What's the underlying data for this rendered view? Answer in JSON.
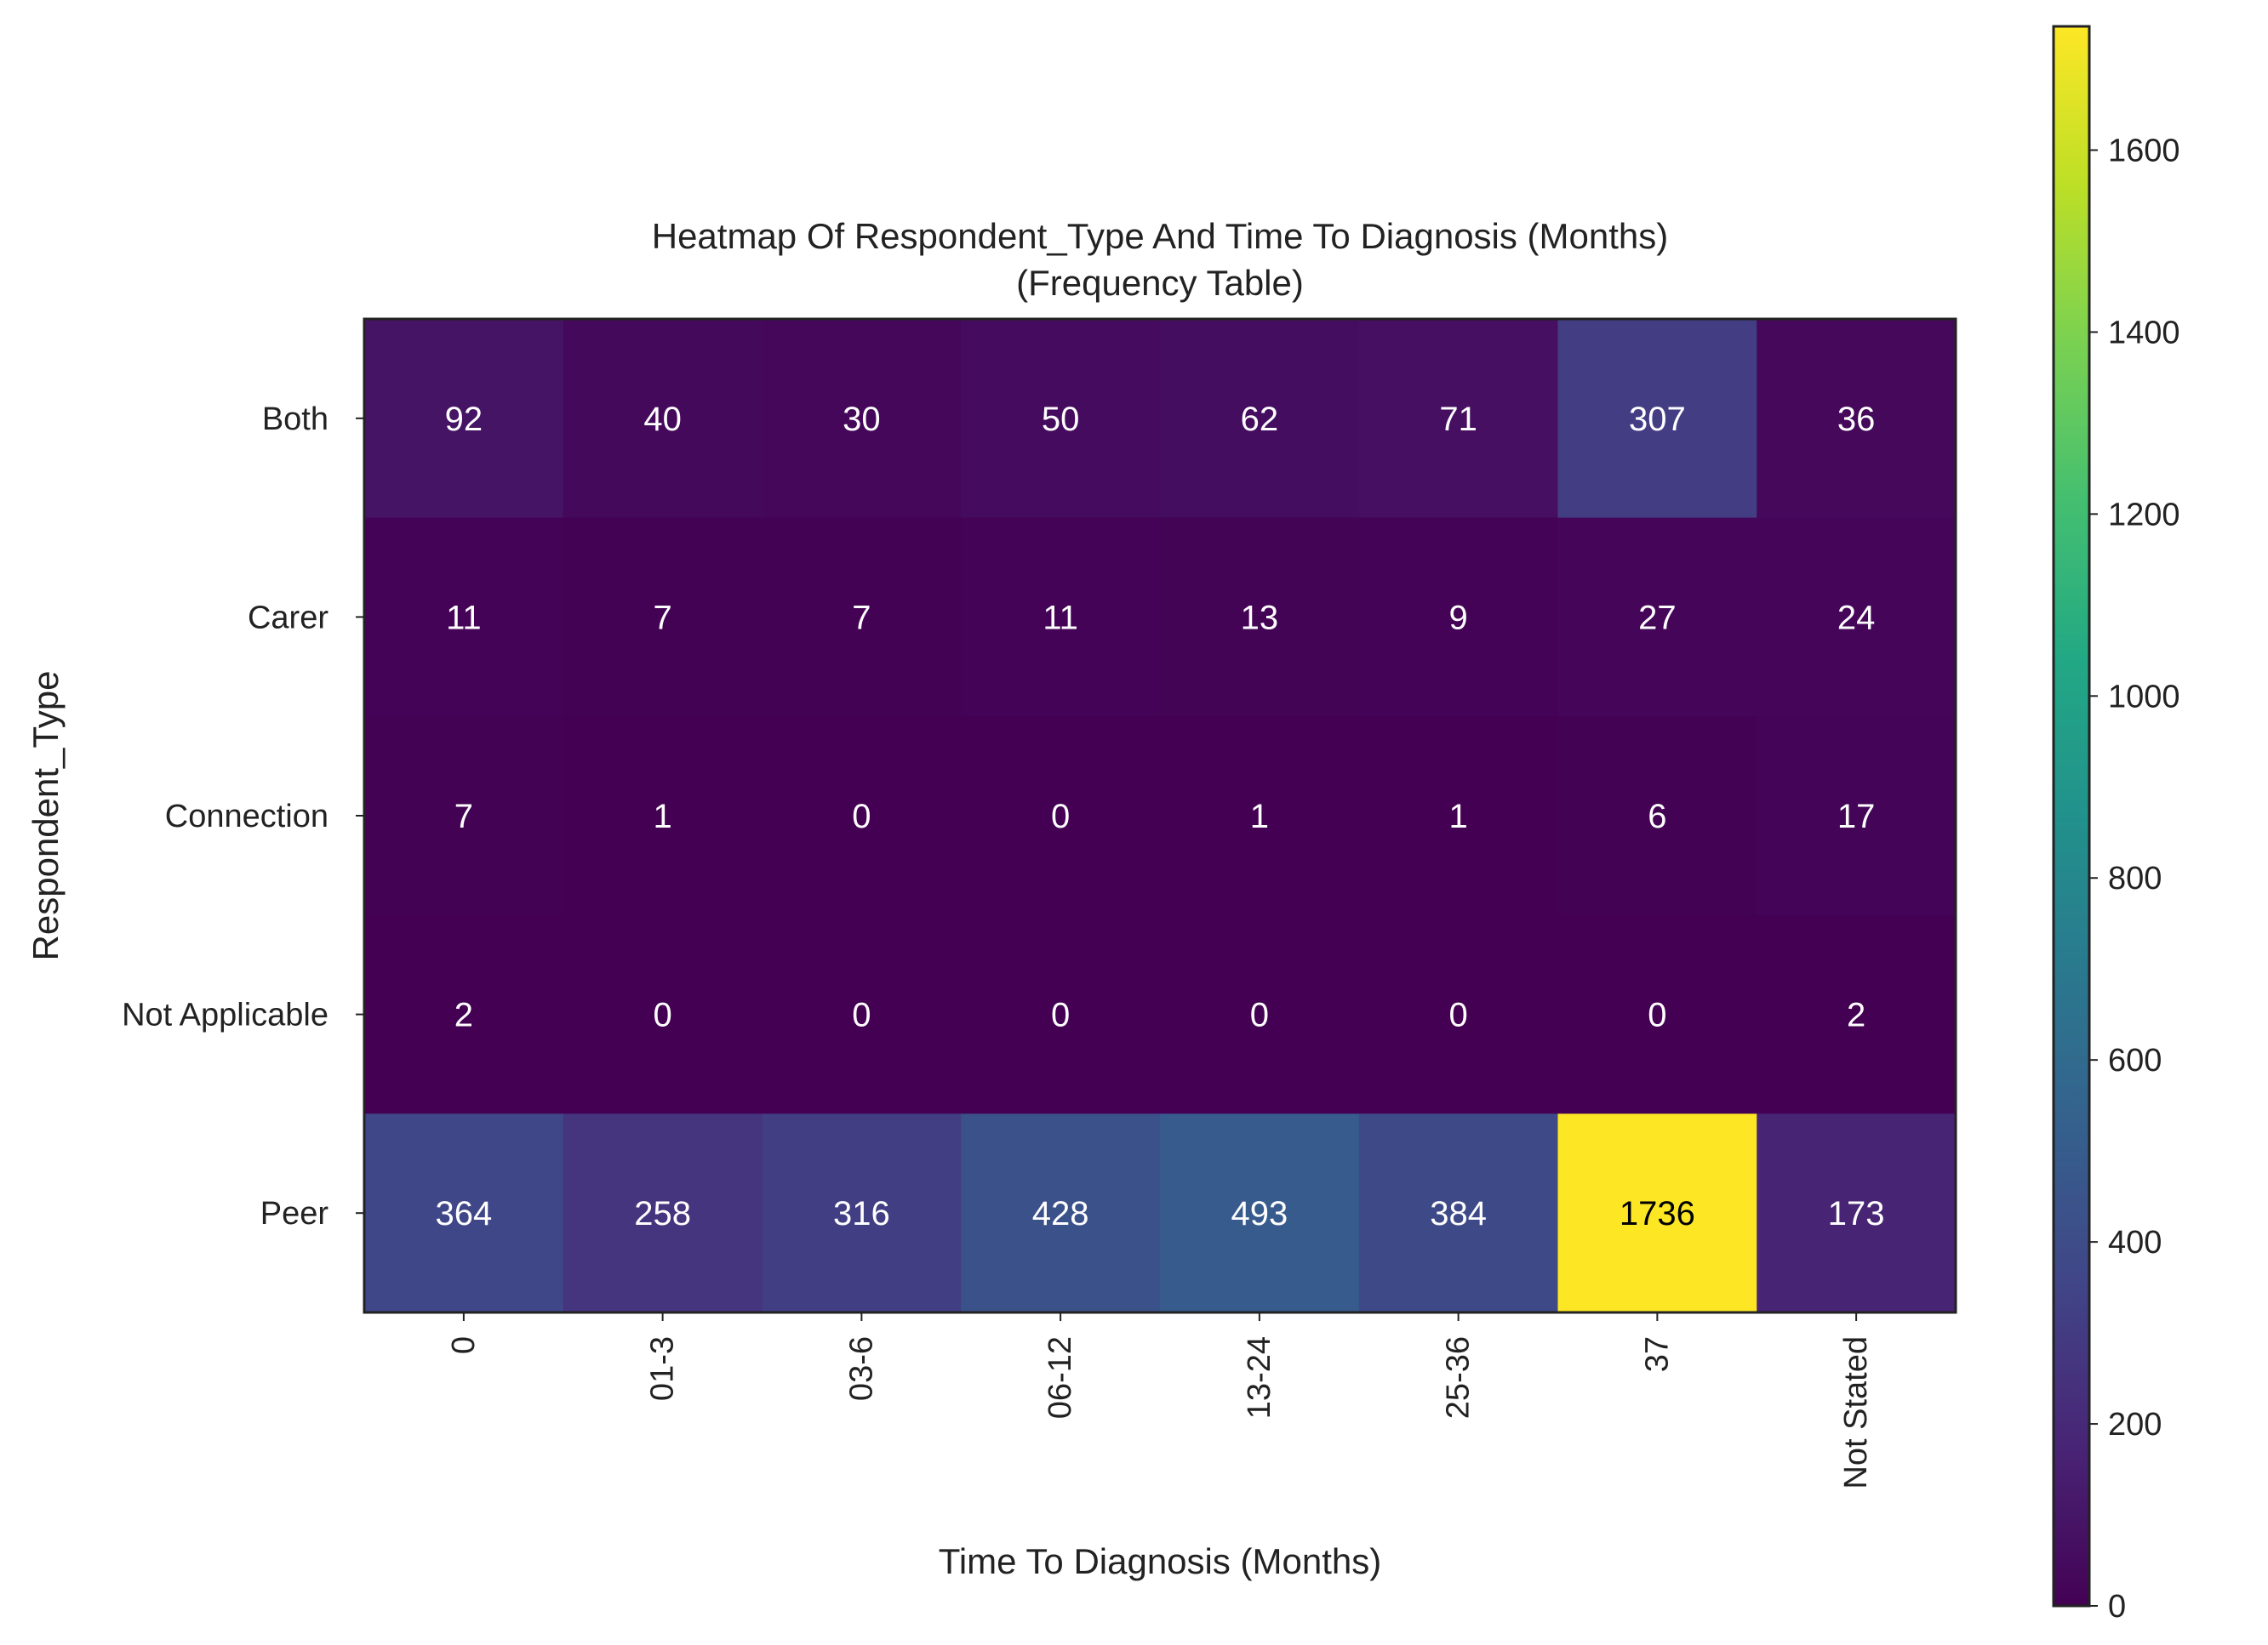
{
  "chart_data": {
    "type": "heatmap",
    "title": "Heatmap Of Respondent_Type And Time To Diagnosis (Months)",
    "subtitle": "(Frequency Table)",
    "xlabel": "Time To Diagnosis (Months)",
    "ylabel": "Respondent_Type",
    "x_categories": [
      "0",
      "01-3",
      "03-6",
      "06-12",
      "13-24",
      "25-36",
      "37",
      "Not Stated"
    ],
    "y_categories": [
      "Both",
      "Carer",
      "Connection",
      "Not Applicable",
      "Peer"
    ],
    "values": [
      [
        92,
        40,
        30,
        50,
        62,
        71,
        307,
        36
      ],
      [
        11,
        7,
        7,
        11,
        13,
        9,
        27,
        24
      ],
      [
        7,
        1,
        0,
        0,
        1,
        1,
        6,
        17
      ],
      [
        2,
        0,
        0,
        0,
        0,
        0,
        0,
        2
      ],
      [
        364,
        258,
        316,
        428,
        493,
        384,
        1736,
        173
      ]
    ],
    "colormap": "viridis",
    "colorbar": {
      "range": [
        0,
        1736
      ],
      "ticks": [
        0,
        200,
        400,
        600,
        800,
        1000,
        1200,
        1400,
        1600
      ]
    },
    "annotations": true,
    "grid": false
  }
}
